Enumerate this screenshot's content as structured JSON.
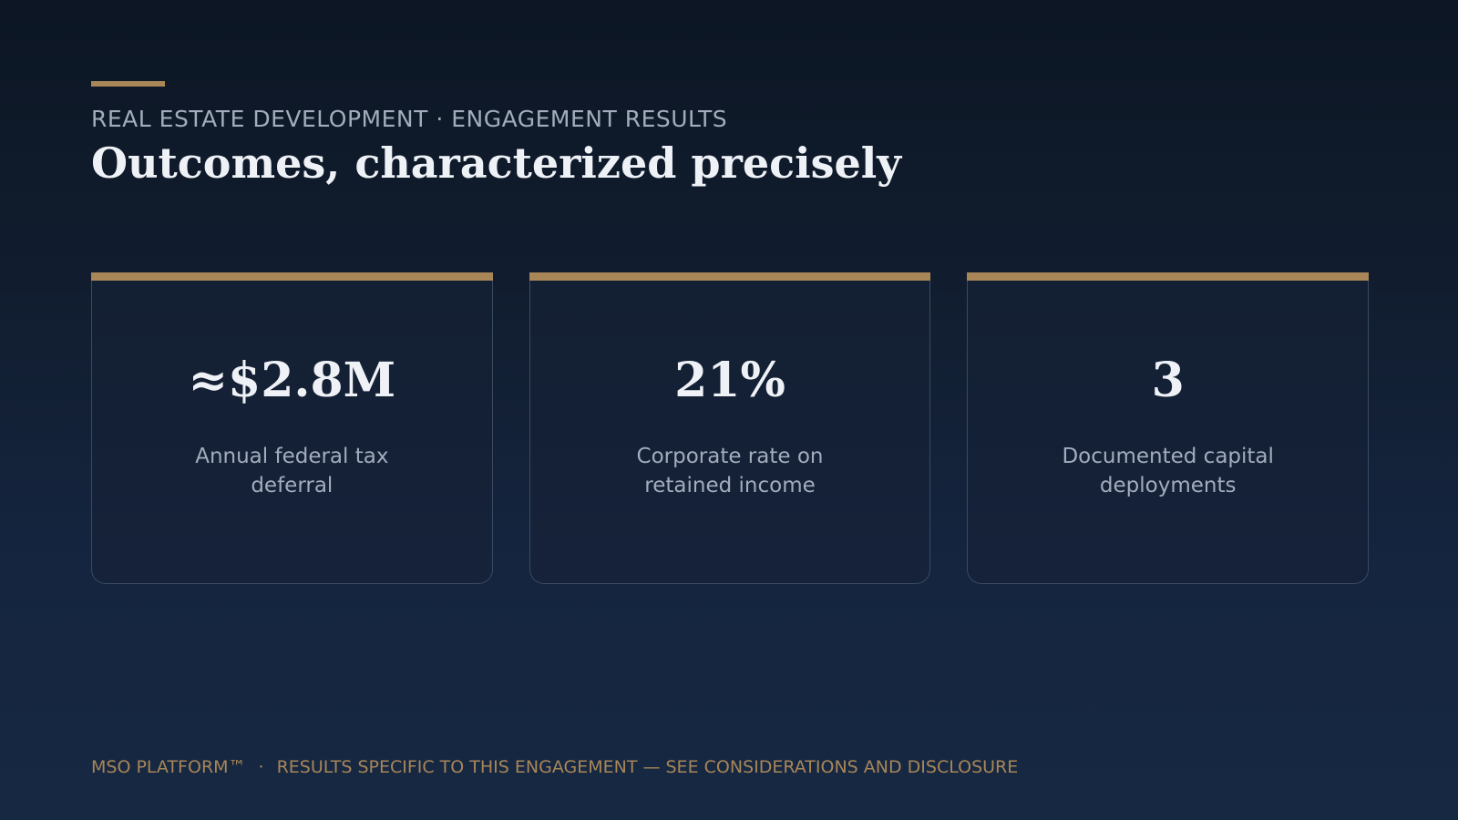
{
  "header": {
    "eyebrow": "REAL ESTATE DEVELOPMENT · ENGAGEMENT RESULTS",
    "title": "Outcomes, characterized precisely"
  },
  "cards": [
    {
      "value": "≈$2.8M",
      "label": "Annual federal tax deferral"
    },
    {
      "value": "21%",
      "label": "Corporate rate on retained income"
    },
    {
      "value": "3",
      "label": "Documented capital deployments"
    }
  ],
  "footer": {
    "brand": "MSO PLATFORM™",
    "separator": "·",
    "note": "RESULTS SPECIFIC TO THIS ENGAGEMENT — SEE CONSIDERATIONS AND DISCLOSURE"
  },
  "colors": {
    "accent": "#a88658",
    "background": "#111d2f",
    "text_primary": "#eef1f6",
    "text_secondary": "#a2acbc"
  }
}
